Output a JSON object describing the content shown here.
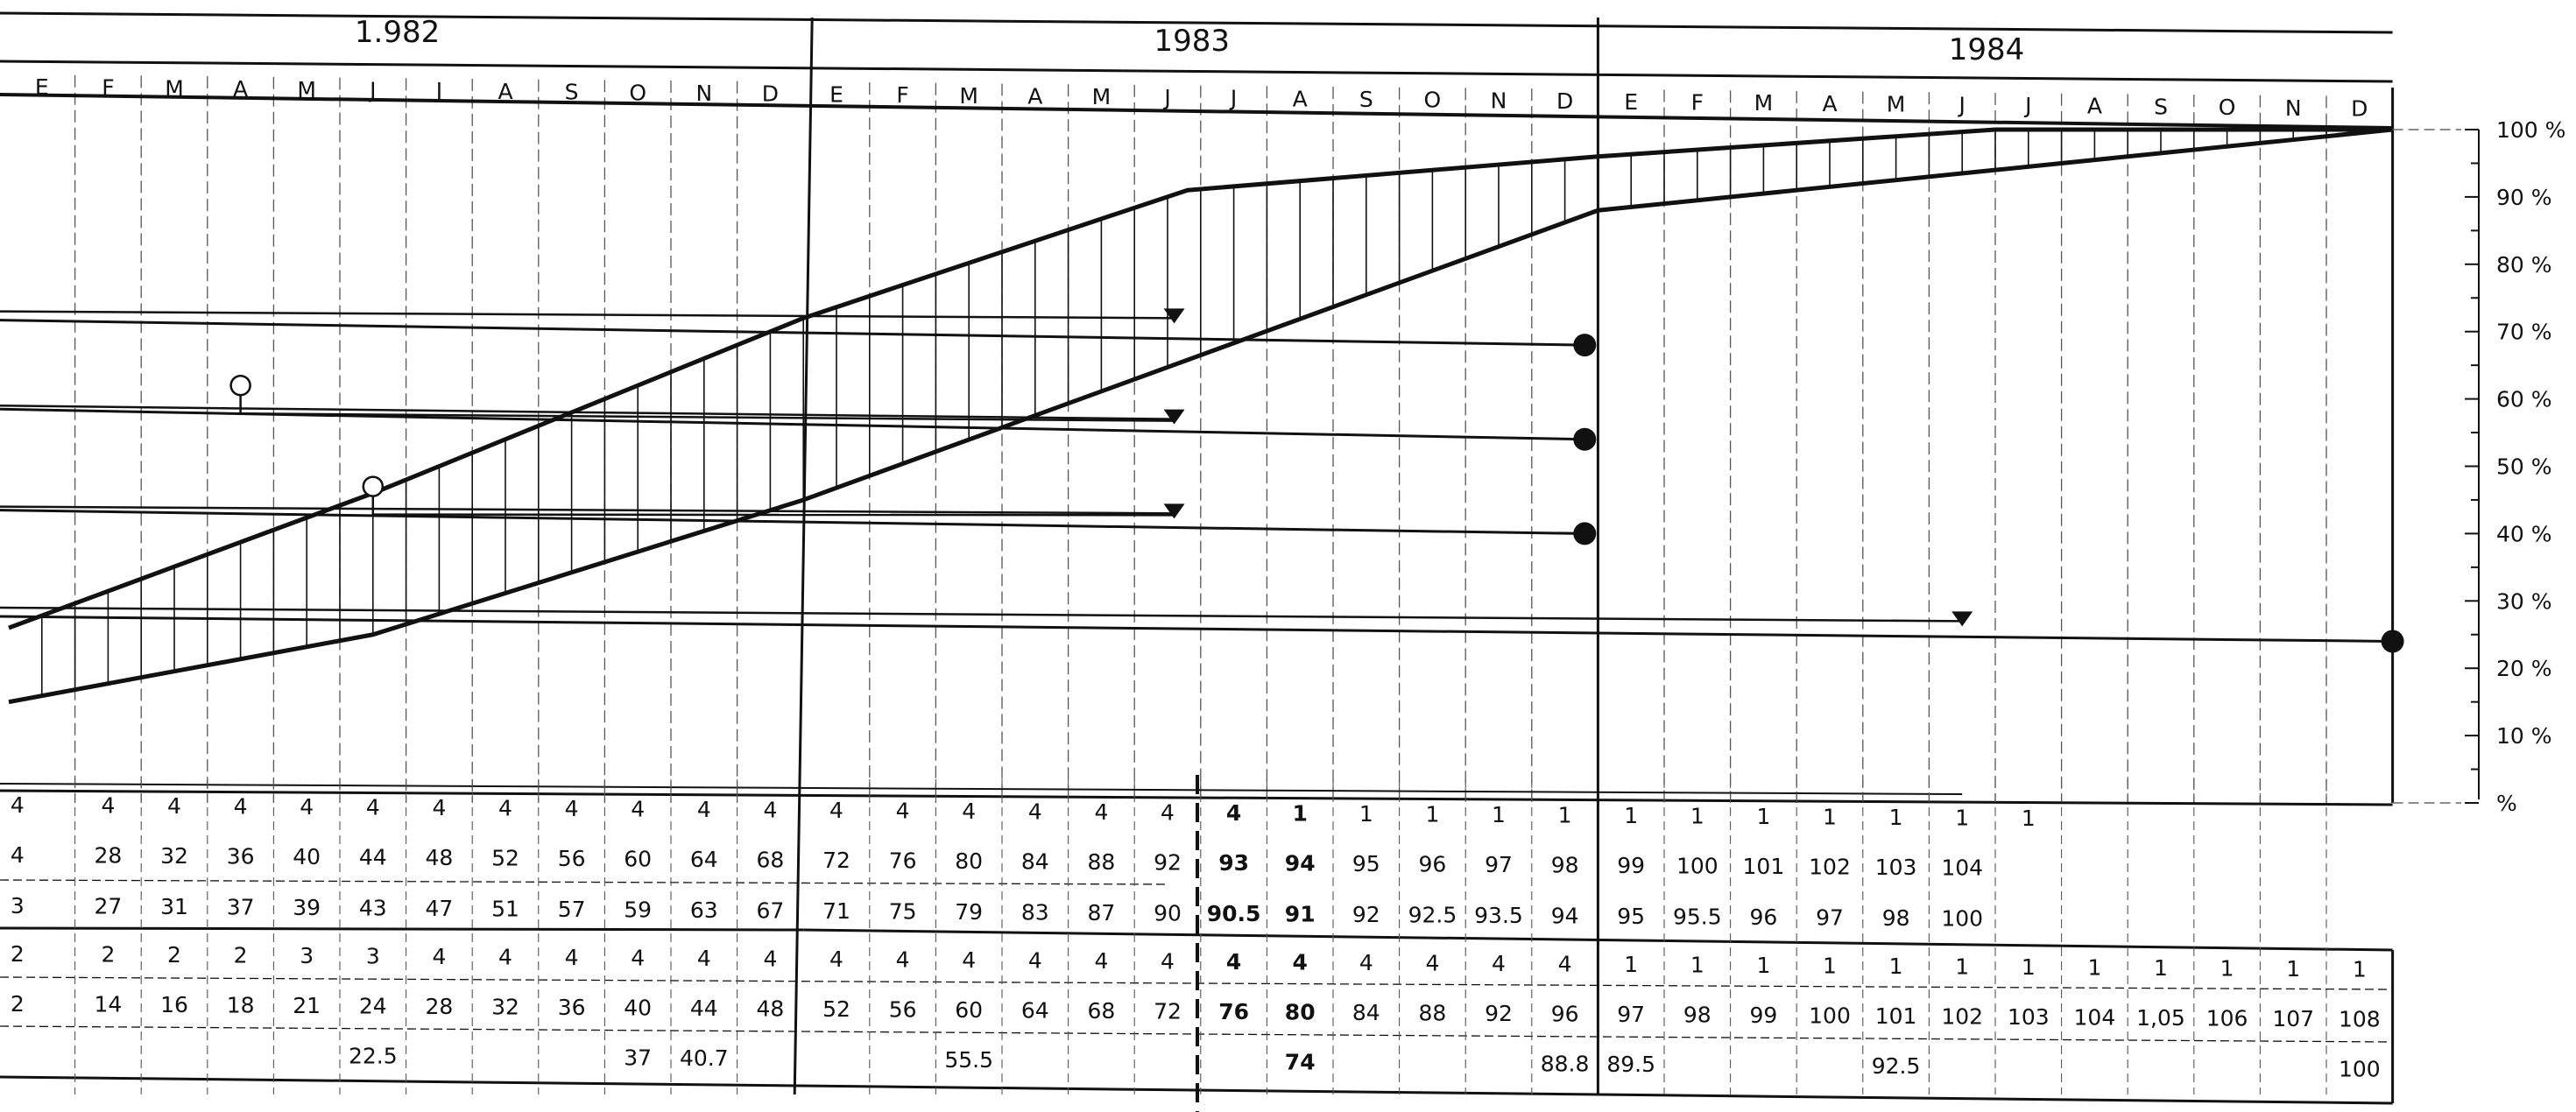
{
  "chart_data": {
    "type": "line",
    "years": [
      "1.982",
      "1983",
      "1984"
    ],
    "month_labels": [
      "E",
      "F",
      "M",
      "A",
      "M",
      "J",
      "J",
      "A",
      "S",
      "O",
      "N",
      "D",
      "E",
      "F",
      "M",
      "A",
      "M",
      "J",
      "J",
      "A",
      "S",
      "O",
      "N",
      "D",
      "E",
      "F",
      "M",
      "A",
      "M",
      "J",
      "J",
      "A",
      "S",
      "O",
      "N",
      "D"
    ],
    "first_month_label_visible": "E",
    "y_axis": {
      "ticks": [
        "100 %",
        "90 %",
        "80 %",
        "70 %",
        "60 %",
        "50 %",
        "40 %",
        "30 %",
        "20 %",
        "10 %",
        "%"
      ],
      "ylim": [
        0,
        100
      ]
    },
    "x_range_months": [
      0,
      36
    ],
    "series": [
      {
        "x": [
          0,
          5.5,
          12,
          17.8,
          24,
          30,
          36
        ],
        "y": [
          26,
          46,
          72,
          91,
          96,
          100,
          100
        ]
      },
      {
        "x": [
          0,
          5.5,
          12,
          24,
          30,
          36
        ],
        "y": [
          15,
          25,
          45,
          88,
          94,
          100
        ]
      }
    ],
    "hatched_band": "between series",
    "horizontal_bars": [
      {
        "start_y": 73,
        "open_circle_at": null,
        "triangle_at": [
          17.6,
          72
        ],
        "end_dot_at": [
          23.8,
          68
        ]
      },
      {
        "start_y": 59,
        "open_circle_at": [
          3.5,
          62
        ],
        "triangle_at": [
          17.6,
          57
        ],
        "end_dot_at": [
          23.8,
          54
        ]
      },
      {
        "start_y": 44,
        "open_circle_at": [
          5.5,
          47
        ],
        "triangle_at": [
          17.6,
          43
        ],
        "end_dot_at": [
          23.8,
          40
        ]
      },
      {
        "start_y": 29,
        "open_circle_at": null,
        "triangle_at": [
          29.5,
          27
        ],
        "end_dot_at": [
          36,
          24
        ]
      }
    ],
    "table_top": {
      "rows": [
        [
          "4",
          "4",
          "4",
          "4",
          "4",
          "4",
          "4",
          "4",
          "4",
          "4",
          "4",
          "4",
          "4",
          "4",
          "4",
          "4",
          "4",
          "4",
          "4",
          "1",
          "1",
          "1",
          "1",
          "1",
          "1",
          "1",
          "1",
          "1",
          "1",
          "1",
          "1"
        ],
        [
          "4",
          "28",
          "32",
          "36",
          "40",
          "44",
          "48",
          "52",
          "56",
          "60",
          "64",
          "68",
          "72",
          "76",
          "80",
          "84",
          "88",
          "92",
          "93",
          "94",
          "95",
          "96",
          "97",
          "98",
          "99",
          "100",
          "101",
          "102",
          "103",
          "104"
        ],
        [
          "3",
          "27",
          "31",
          "37",
          "39",
          "43",
          "47",
          "51",
          "57",
          "59",
          "63",
          "67",
          "71",
          "75",
          "79",
          "83",
          "87",
          "90",
          "90.5",
          "91",
          "92",
          "92.5",
          "93.5",
          "94",
          "95",
          "95.5",
          "96",
          "97",
          "98",
          "100"
        ]
      ]
    },
    "table_bottom": {
      "rows": [
        [
          "2",
          "2",
          "2",
          "2",
          "3",
          "3",
          "4",
          "4",
          "4",
          "4",
          "4",
          "4",
          "4",
          "4",
          "4",
          "4",
          "4",
          "4",
          "4",
          "4",
          "4",
          "4",
          "4",
          "4",
          "1",
          "1",
          "1",
          "1",
          "1",
          "1",
          "1",
          "1",
          "1",
          "1",
          "1",
          "1"
        ],
        [
          "2",
          "14",
          "16",
          "18",
          "21",
          "24",
          "28",
          "32",
          "36",
          "40",
          "44",
          "48",
          "52",
          "56",
          "60",
          "64",
          "68",
          "72",
          "76",
          "80",
          "84",
          "88",
          "92",
          "96",
          "97",
          "98",
          "99",
          "100",
          "101",
          "102",
          "103",
          "104",
          "1,05",
          "106",
          "107",
          "108"
        ],
        [
          "",
          "",
          "",
          "",
          "",
          "22.5",
          "",
          "",
          "",
          "37",
          "40.7",
          "",
          "",
          "",
          "55.5",
          "",
          "",
          "",
          "",
          "74",
          "",
          "",
          "",
          "88.8",
          "89.5",
          "",
          "",
          "",
          "92.5",
          "",
          "",
          "",
          "",
          "",
          "",
          "100"
        ]
      ]
    }
  }
}
